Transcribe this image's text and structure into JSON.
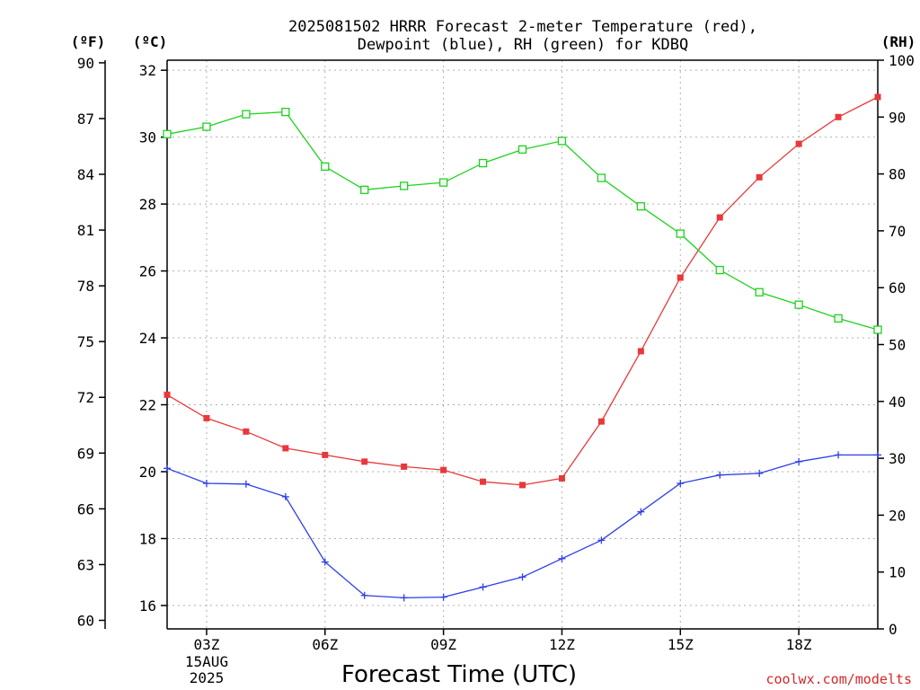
{
  "title_line1": "2025081502 HRRR Forecast 2-meter Temperature (red),",
  "title_line2": "Dewpoint (blue), RH (green) for KDBQ",
  "xlabel": "Forecast Time (UTC)",
  "credit": "coolwx.com/modelts",
  "unit_left_f": "(ºF)",
  "unit_left_c": "(ºC)",
  "unit_right_rh": "(RH)",
  "date_label_1": "15AUG",
  "date_label_2": "2025",
  "chart_data": {
    "type": "line",
    "x_hours_utc": [
      2,
      3,
      4,
      5,
      6,
      7,
      8,
      9,
      10,
      11,
      12,
      13,
      14,
      15,
      16,
      17,
      18,
      19,
      20
    ],
    "xlim_hours": [
      2,
      20
    ],
    "x_ticks": [
      {
        "hour": 3,
        "label": "03Z"
      },
      {
        "hour": 6,
        "label": "06Z"
      },
      {
        "hour": 9,
        "label": "09Z"
      },
      {
        "hour": 12,
        "label": "12Z"
      },
      {
        "hour": 15,
        "label": "15Z"
      },
      {
        "hour": 18,
        "label": "18Z"
      }
    ],
    "y_celsius": {
      "lim": [
        15.3,
        32.3
      ],
      "ticks": [
        16,
        18,
        20,
        22,
        24,
        26,
        28,
        30,
        32
      ]
    },
    "y_fahrenheit": {
      "ticks": [
        60,
        63,
        66,
        69,
        72,
        75,
        78,
        81,
        84,
        87,
        90
      ]
    },
    "y_rh": {
      "lim": [
        0,
        100
      ],
      "ticks": [
        0,
        10,
        20,
        30,
        40,
        50,
        60,
        70,
        80,
        90,
        100
      ]
    },
    "grid": true,
    "series": [
      {
        "name": "Temperature (red)",
        "axis": "celsius",
        "color": "#e8383b",
        "marker": "filled-square",
        "values": [
          22.3,
          21.6,
          21.2,
          20.7,
          20.5,
          20.3,
          20.15,
          20.05,
          19.7,
          19.6,
          19.8,
          21.5,
          23.6,
          25.8,
          27.6,
          28.8,
          29.8,
          30.6,
          31.2
        ]
      },
      {
        "name": "Dewpoint (blue)",
        "axis": "celsius",
        "color": "#2e3ee8",
        "marker": "plus",
        "values": [
          20.1,
          19.65,
          19.63,
          19.25,
          17.3,
          16.3,
          16.23,
          16.25,
          16.55,
          16.85,
          17.4,
          17.95,
          18.8,
          19.65,
          19.9,
          19.95,
          20.3,
          20.5,
          20.5
        ]
      },
      {
        "name": "RH (green)",
        "axis": "rh",
        "color": "#1ed21e",
        "marker": "open-square",
        "values": [
          87,
          88.3,
          90.5,
          90.9,
          81.3,
          77.2,
          77.9,
          78.5,
          81.9,
          84.3,
          85.8,
          79.3,
          74.3,
          69.5,
          63.1,
          59.2,
          57.0,
          54.6,
          52.6
        ]
      }
    ]
  }
}
